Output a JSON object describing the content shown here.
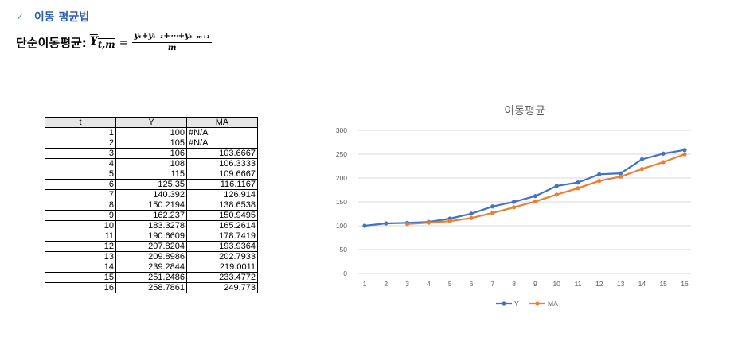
{
  "header": {
    "check_icon": "check-icon",
    "title": "이동 평균법"
  },
  "formula": {
    "label": "단순이동평균:",
    "lhs": "Y",
    "lhs_sub": "t,m",
    "equals": "=",
    "numerator": "yₜ+yₜ₋₁+⋯+yₜ₋ₘ₊₁",
    "denominator": "m"
  },
  "table": {
    "headers": [
      "t",
      "Y",
      "MA"
    ],
    "rows": [
      [
        "1",
        "100",
        "#N/A"
      ],
      [
        "2",
        "105",
        "#N/A"
      ],
      [
        "3",
        "106",
        "103.6667"
      ],
      [
        "4",
        "108",
        "106.3333"
      ],
      [
        "5",
        "115",
        "109.6667"
      ],
      [
        "6",
        "125.35",
        "116.1167"
      ],
      [
        "7",
        "140.392",
        "126.914"
      ],
      [
        "8",
        "150.2194",
        "138.6538"
      ],
      [
        "9",
        "162.237",
        "150.9495"
      ],
      [
        "10",
        "183.3278",
        "165.2614"
      ],
      [
        "11",
        "190.6609",
        "178.7419"
      ],
      [
        "12",
        "207.8204",
        "193.9364"
      ],
      [
        "13",
        "209.8986",
        "202.7933"
      ],
      [
        "14",
        "239.2844",
        "219.0011"
      ],
      [
        "15",
        "251.2486",
        "233.4772"
      ],
      [
        "16",
        "258.7861",
        "249.773"
      ]
    ]
  },
  "chart_data": {
    "type": "line",
    "title": "이동평균",
    "x": [
      "1",
      "2",
      "3",
      "4",
      "5",
      "6",
      "7",
      "8",
      "9",
      "10",
      "11",
      "12",
      "13",
      "14",
      "15",
      "16"
    ],
    "ylim": [
      0,
      300
    ],
    "yticks": [
      0,
      50,
      100,
      150,
      200,
      250,
      300
    ],
    "grid": true,
    "legend": "bottom",
    "series": [
      {
        "name": "Y",
        "color": "#4472c4",
        "values": [
          100,
          105,
          106,
          108,
          115,
          125.35,
          140.392,
          150.2194,
          162.237,
          183.3278,
          190.6609,
          207.8204,
          209.8986,
          239.2844,
          251.2486,
          258.7861
        ]
      },
      {
        "name": "MA",
        "color": "#ed7d31",
        "values": [
          null,
          null,
          103.6667,
          106.3333,
          109.6667,
          116.1167,
          126.914,
          138.6538,
          150.9495,
          165.2614,
          178.7419,
          193.9364,
          202.7933,
          219.0011,
          233.4772,
          249.773
        ]
      }
    ]
  }
}
